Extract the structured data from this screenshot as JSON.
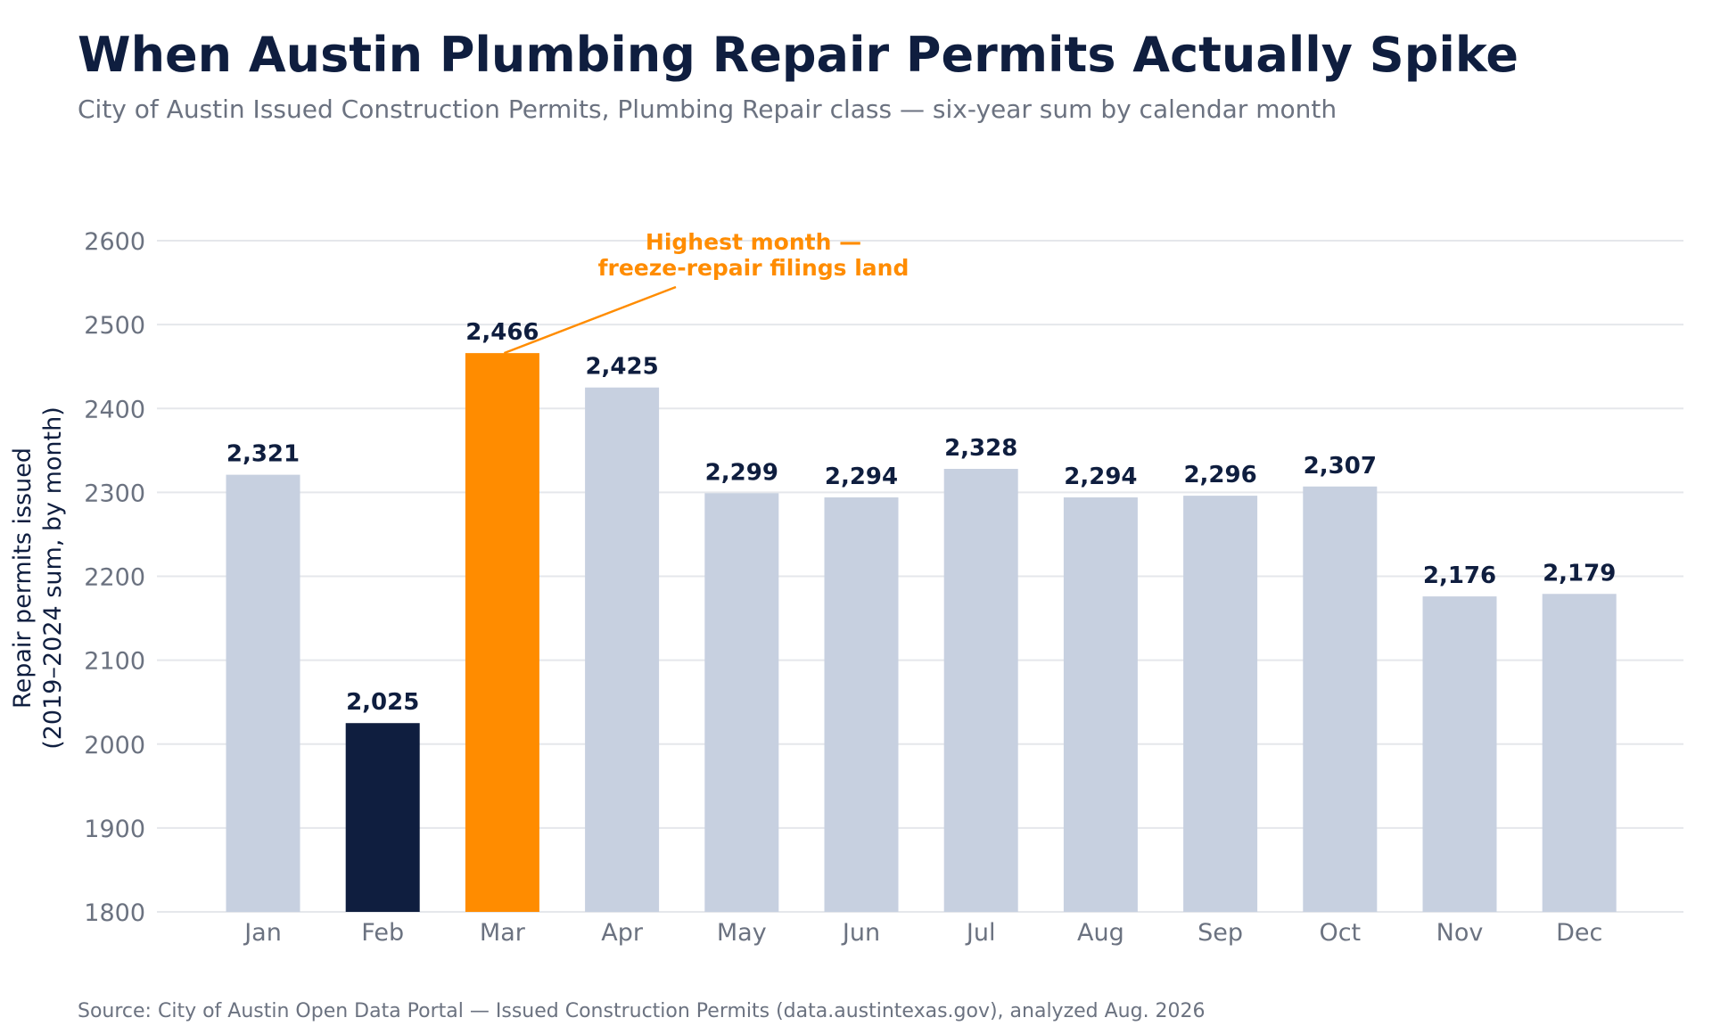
{
  "header": {
    "title": "When Austin Plumbing Repair Permits Actually Spike",
    "subtitle": "City of Austin Issued Construction Permits, Plumbing Repair class — six-year sum by calendar month"
  },
  "footer": {
    "source": "Source: City of Austin Open Data Portal — Issued Construction Permits (data.austintexas.gov), analyzed Aug. 2026"
  },
  "chart_data": {
    "type": "bar",
    "title": "When Austin Plumbing Repair Permits Actually Spike",
    "subtitle": "City of Austin Issued Construction Permits, Plumbing Repair class — six-year sum by calendar month",
    "xlabel": "",
    "ylabel": [
      "Repair permits issued",
      "(2019–2024 sum, by month)"
    ],
    "categories": [
      "Jan",
      "Feb",
      "Mar",
      "Apr",
      "May",
      "Jun",
      "Jul",
      "Aug",
      "Sep",
      "Oct",
      "Nov",
      "Dec"
    ],
    "values": [
      2321,
      2025,
      2466,
      2425,
      2299,
      2294,
      2328,
      2294,
      2296,
      2307,
      2176,
      2179
    ],
    "value_labels": [
      "2,321",
      "2,025",
      "2,466",
      "2,425",
      "2,299",
      "2,294",
      "2,328",
      "2,294",
      "2,296",
      "2,307",
      "2,176",
      "2,179"
    ],
    "ylim": [
      1800,
      2600
    ],
    "yticks": [
      1800,
      1900,
      2000,
      2100,
      2200,
      2300,
      2400,
      2500,
      2600
    ],
    "grid": true,
    "legend": "none",
    "colors": {
      "default": "#c7d0e0",
      "highest": "#ff8c00",
      "lowest": "#0f1e3f",
      "grid": "#e5e7eb",
      "text": "#0f1e3f",
      "muted": "#6b7280"
    },
    "highlights": {
      "highest": "Mar",
      "lowest": "Feb"
    },
    "annotation": {
      "target": "Mar",
      "lines": [
        "Highest month —",
        "freeze-repair filings land"
      ],
      "color": "#ff8c00"
    }
  }
}
